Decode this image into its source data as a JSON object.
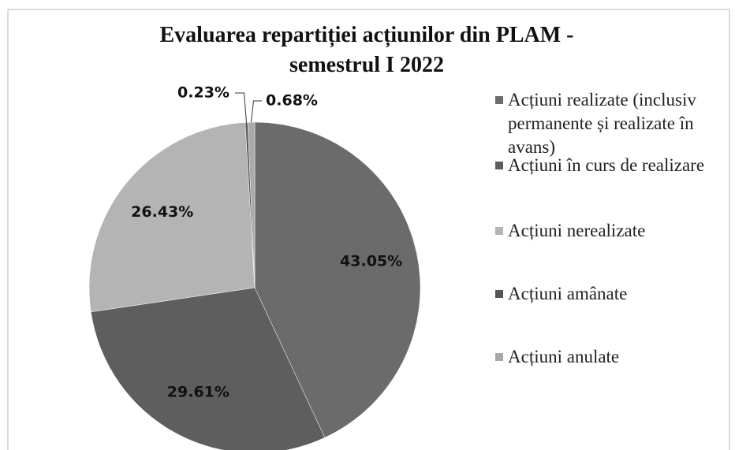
{
  "chart_data": {
    "type": "pie",
    "title": "Evaluarea repartiției acțiunilor din PLAM - semestrul I 2022",
    "categories": [
      "Acțiuni realizate (inclusiv permanente și realizate în avans)",
      "Acțiuni în curs de realizare",
      "Acțiuni nerealizate",
      "Acțiuni amânate",
      "Acțiuni anulate"
    ],
    "values": [
      43.05,
      29.61,
      26.43,
      0.23,
      0.68
    ],
    "value_labels": [
      "43.05%",
      "29.61%",
      "26.43%",
      "0.23%",
      "0.68%"
    ],
    "colors": [
      "#6b6b6b",
      "#5e5e5e",
      "#b4b4b4",
      "#555555",
      "#a9a9a9"
    ],
    "legend": "right"
  }
}
